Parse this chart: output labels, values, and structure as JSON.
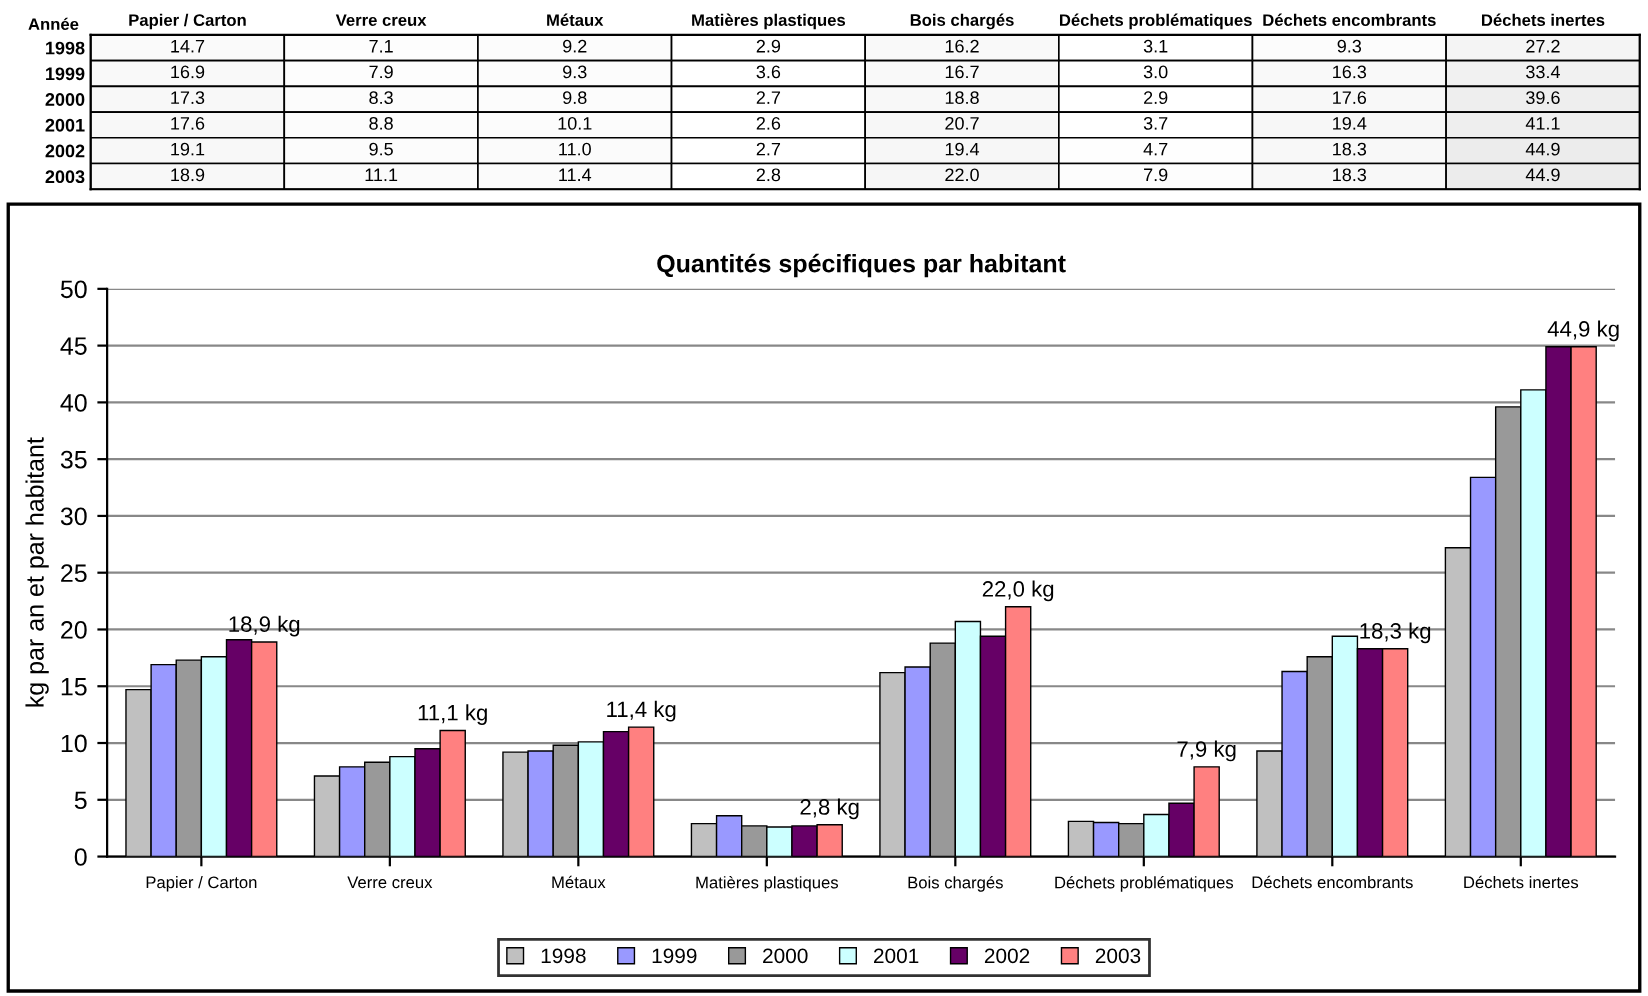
{
  "chart_data": [
    {
      "type": "heatmap",
      "ylabel": "Année",
      "data_labels": true,
      "categories": [
        "Papier / Carton",
        "Verre creux",
        "Métaux",
        "Matières plastiques",
        "Bois chargés",
        "Déchets problématiques",
        "Déchets encombrants",
        "Déchets inertes"
      ],
      "y_categories": [
        "1998",
        "1999",
        "2000",
        "2001",
        "2002",
        "2003"
      ],
      "cells": [
        [
          14.7,
          7.1,
          9.2,
          2.9,
          16.2,
          3.1,
          9.3,
          27.2
        ],
        [
          16.9,
          7.9,
          9.3,
          3.6,
          16.7,
          3.0,
          16.3,
          33.4
        ],
        [
          17.3,
          8.3,
          9.8,
          2.7,
          18.8,
          2.9,
          17.6,
          39.6
        ],
        [
          17.6,
          8.8,
          10.1,
          2.6,
          20.7,
          3.7,
          19.4,
          41.1
        ],
        [
          19.1,
          9.5,
          11.0,
          2.7,
          19.4,
          4.7,
          18.3,
          44.9
        ],
        [
          18.9,
          11.1,
          11.4,
          2.8,
          22.0,
          7.9,
          18.3,
          44.9
        ]
      ],
      "cell_labels": [
        [
          "14.7",
          "7.1",
          "9.2",
          "2.9",
          "16.2",
          "3.1",
          "9.3",
          "27.2"
        ],
        [
          "16.9",
          "7.9",
          "9.3",
          "3.6",
          "16.7",
          "3.0",
          "16.3",
          "33.4"
        ],
        [
          "17.3",
          "8.3",
          "9.8",
          "2.7",
          "18.8",
          "2.9",
          "17.6",
          "39.6"
        ],
        [
          "17.6",
          "8.8",
          "10.1",
          "2.6",
          "20.7",
          "3.7",
          "19.4",
          "41.1"
        ],
        [
          "19.1",
          "9.5",
          "11.0",
          "2.7",
          "19.4",
          "4.7",
          "18.3",
          "44.9"
        ],
        [
          "18.9",
          "11.1",
          "11.4",
          "2.8",
          "22.0",
          "7.9",
          "18.3",
          "44.9"
        ]
      ]
    },
    {
      "type": "bar",
      "title": "Quantités spécifiques par habitant",
      "ylabel": "kg par an et par habitant",
      "categories": [
        "Papier / Carton",
        "Verre creux",
        "Métaux",
        "Matières plastiques",
        "Bois chargés",
        "Déchets problématiques",
        "Déchets encombrants",
        "Déchets inertes"
      ],
      "series": [
        {
          "name": "1998",
          "color": "#c0c0c0",
          "values": [
            14.7,
            7.1,
            9.2,
            2.9,
            16.2,
            3.1,
            9.3,
            27.2
          ]
        },
        {
          "name": "1999",
          "color": "#9999ff",
          "values": [
            16.9,
            7.9,
            9.3,
            3.6,
            16.7,
            3.0,
            16.3,
            33.4
          ]
        },
        {
          "name": "2000",
          "color": "#999999",
          "values": [
            17.3,
            8.3,
            9.8,
            2.7,
            18.8,
            2.9,
            17.6,
            39.6
          ]
        },
        {
          "name": "2001",
          "color": "#ccffff",
          "values": [
            17.6,
            8.8,
            10.1,
            2.6,
            20.7,
            3.7,
            19.4,
            41.1
          ]
        },
        {
          "name": "2002",
          "color": "#660066",
          "values": [
            19.1,
            9.5,
            11.0,
            2.7,
            19.4,
            4.7,
            18.3,
            44.9
          ]
        },
        {
          "name": "2003",
          "color": "#ff8080",
          "values": [
            18.9,
            11.1,
            11.4,
            2.8,
            22.0,
            7.9,
            18.3,
            44.9
          ],
          "value_labels": [
            "18,9 kg",
            "11,1 kg",
            "11,4 kg",
            "2,8 kg",
            "22,0 kg",
            "7,9 kg",
            "18,3 kg",
            "44,9 kg"
          ]
        }
      ],
      "ylim": [
        0,
        50
      ],
      "yticks": [
        0,
        5,
        10,
        15,
        20,
        25,
        30,
        35,
        40,
        45,
        50
      ],
      "grid": "y",
      "legend": "bottom"
    }
  ]
}
